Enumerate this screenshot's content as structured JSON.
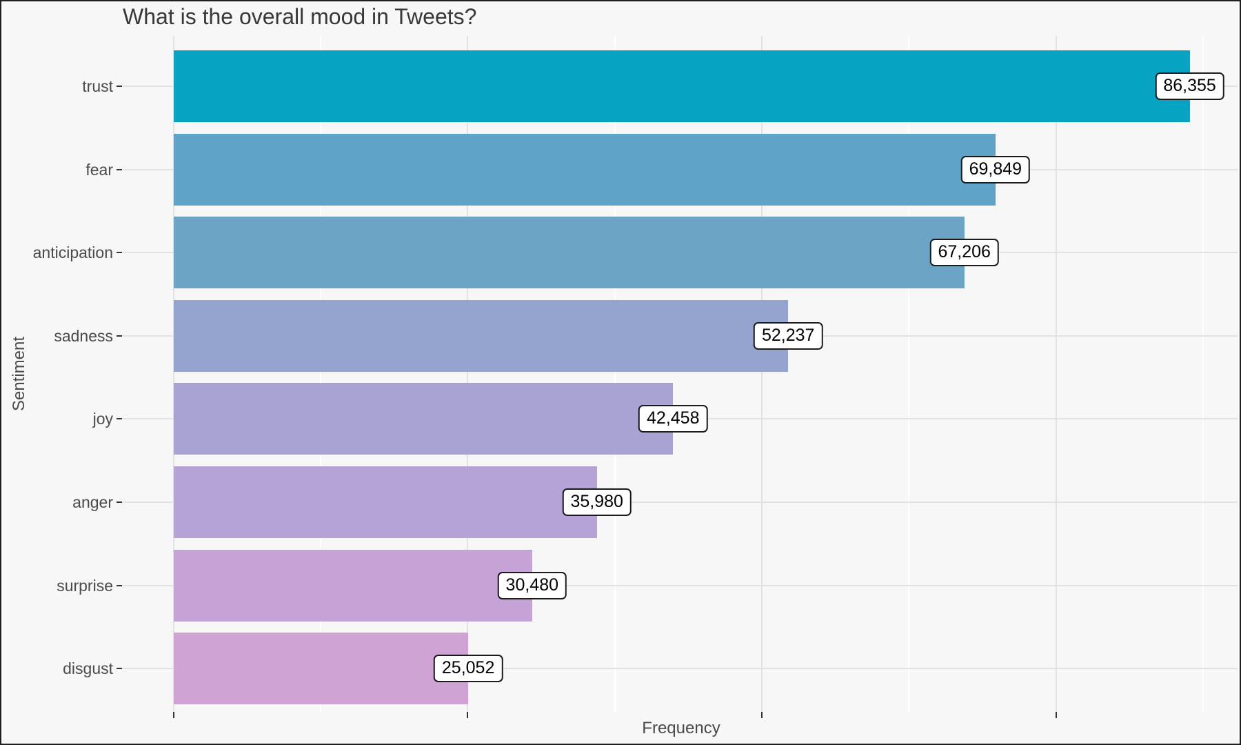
{
  "chart_data": {
    "type": "bar",
    "orientation": "horizontal",
    "title": "What is the overall mood in Tweets?",
    "xlabel": "Frequency",
    "ylabel": "Sentiment",
    "categories": [
      "trust",
      "fear",
      "anticipation",
      "sadness",
      "joy",
      "anger",
      "surprise",
      "disgust"
    ],
    "values": [
      86355,
      69849,
      67206,
      52237,
      42458,
      35980,
      30480,
      25052
    ],
    "value_labels": [
      "86,355",
      "69,849",
      "67,206",
      "52,237",
      "42,458",
      "35,980",
      "30,480",
      "25,052"
    ],
    "bar_colors": [
      "#06a3c3",
      "#60a3c9",
      "#6ba4c5",
      "#94a4ce",
      "#a9a3d3",
      "#b5a3d8",
      "#c5a3d7",
      "#cfa4d4"
    ],
    "x_major_ticks": [
      0,
      25000,
      50000,
      75000
    ],
    "x_minor_ticks": [
      12500,
      37500,
      62500,
      87500
    ],
    "x_tick_labels": [
      "",
      "",
      "",
      ""
    ],
    "xlim": [
      0,
      90700
    ],
    "grid": true,
    "legend": false,
    "colors": {
      "background": "#f7f7f7",
      "grid_major": "#e2e2e2",
      "grid_minor": "#ffffff",
      "axis_tick": "#333333",
      "axis_text": "#4a4a4a",
      "title_text": "#383838",
      "label_box_bg": "#ffffff",
      "label_box_border": "#1a1a1a"
    }
  }
}
